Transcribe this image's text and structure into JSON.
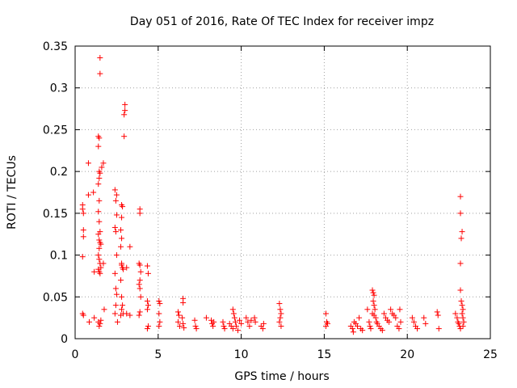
{
  "chart_data": {
    "type": "scatter",
    "title": "Day 051 of 2016, Rate Of TEC Index for receiver impz",
    "xlabel": "GPS time / hours",
    "ylabel": "ROTI / TECUs",
    "xlim": [
      0,
      25
    ],
    "ylim": [
      0,
      0.35
    ],
    "xticks": [
      0,
      5,
      10,
      15,
      20,
      25
    ],
    "yticks": [
      0,
      0.05,
      0.1,
      0.15,
      0.2,
      0.25,
      0.3,
      0.35
    ],
    "xtick_labels": [
      "0",
      "5",
      "10",
      "15",
      "20",
      "25"
    ],
    "ytick_labels": [
      "0",
      "0.05",
      "0.1",
      "0.15",
      "0.2",
      "0.25",
      "0.3",
      "0.35"
    ],
    "grid": true,
    "marker": "plus",
    "color": "#ff0000",
    "series": [
      {
        "name": "ROTI",
        "points": [
          [
            0.45,
            0.16
          ],
          [
            0.45,
            0.155
          ],
          [
            0.5,
            0.15
          ],
          [
            0.5,
            0.13
          ],
          [
            0.5,
            0.122
          ],
          [
            0.45,
            0.098
          ],
          [
            0.45,
            0.03
          ],
          [
            0.5,
            0.028
          ],
          [
            0.8,
            0.21
          ],
          [
            0.8,
            0.172
          ],
          [
            0.85,
            0.02
          ],
          [
            1.1,
            0.175
          ],
          [
            1.15,
            0.08
          ],
          [
            1.15,
            0.025
          ],
          [
            1.4,
            0.242
          ],
          [
            1.45,
            0.24
          ],
          [
            1.4,
            0.23
          ],
          [
            1.45,
            0.2
          ],
          [
            1.5,
            0.198
          ],
          [
            1.45,
            0.192
          ],
          [
            1.4,
            0.185
          ],
          [
            1.45,
            0.165
          ],
          [
            1.4,
            0.152
          ],
          [
            1.45,
            0.14
          ],
          [
            1.5,
            0.128
          ],
          [
            1.4,
            0.125
          ],
          [
            1.45,
            0.118
          ],
          [
            1.5,
            0.115
          ],
          [
            1.55,
            0.113
          ],
          [
            1.45,
            0.108
          ],
          [
            1.4,
            0.1
          ],
          [
            1.45,
            0.095
          ],
          [
            1.5,
            0.09
          ],
          [
            1.4,
            0.083
          ],
          [
            1.45,
            0.08
          ],
          [
            1.5,
            0.078
          ],
          [
            1.55,
            0.085
          ],
          [
            1.4,
            0.02
          ],
          [
            1.45,
            0.015
          ],
          [
            1.5,
            0.018
          ],
          [
            1.55,
            0.022
          ],
          [
            1.5,
            0.336
          ],
          [
            1.5,
            0.317
          ],
          [
            1.7,
            0.21
          ],
          [
            1.6,
            0.205
          ],
          [
            1.7,
            0.09
          ],
          [
            1.75,
            0.035
          ],
          [
            2.4,
            0.178
          ],
          [
            2.5,
            0.172
          ],
          [
            2.45,
            0.165
          ],
          [
            2.5,
            0.148
          ],
          [
            2.4,
            0.133
          ],
          [
            2.45,
            0.128
          ],
          [
            2.5,
            0.1
          ],
          [
            2.4,
            0.078
          ],
          [
            2.45,
            0.06
          ],
          [
            2.5,
            0.053
          ],
          [
            2.45,
            0.04
          ],
          [
            2.4,
            0.03
          ],
          [
            2.55,
            0.02
          ],
          [
            2.8,
            0.16
          ],
          [
            2.85,
            0.158
          ],
          [
            2.8,
            0.145
          ],
          [
            2.75,
            0.13
          ],
          [
            2.8,
            0.12
          ],
          [
            2.75,
            0.11
          ],
          [
            2.8,
            0.09
          ],
          [
            2.85,
            0.085
          ],
          [
            2.9,
            0.083
          ],
          [
            2.8,
            0.088
          ],
          [
            2.75,
            0.07
          ],
          [
            2.8,
            0.05
          ],
          [
            2.85,
            0.04
          ],
          [
            2.8,
            0.035
          ],
          [
            2.9,
            0.03
          ],
          [
            2.75,
            0.028
          ],
          [
            3.0,
            0.28
          ],
          [
            3.0,
            0.273
          ],
          [
            2.95,
            0.268
          ],
          [
            2.95,
            0.242
          ],
          [
            3.1,
            0.085
          ],
          [
            3.1,
            0.03
          ],
          [
            3.3,
            0.11
          ],
          [
            3.3,
            0.028
          ],
          [
            3.9,
            0.155
          ],
          [
            3.9,
            0.15
          ],
          [
            3.85,
            0.09
          ],
          [
            3.9,
            0.088
          ],
          [
            3.95,
            0.08
          ],
          [
            3.9,
            0.07
          ],
          [
            3.85,
            0.065
          ],
          [
            3.9,
            0.06
          ],
          [
            3.95,
            0.05
          ],
          [
            3.9,
            0.032
          ],
          [
            3.85,
            0.028
          ],
          [
            4.35,
            0.087
          ],
          [
            4.4,
            0.078
          ],
          [
            4.35,
            0.045
          ],
          [
            4.4,
            0.04
          ],
          [
            4.35,
            0.035
          ],
          [
            4.4,
            0.015
          ],
          [
            4.35,
            0.012
          ],
          [
            5.05,
            0.045
          ],
          [
            5.1,
            0.042
          ],
          [
            5.05,
            0.03
          ],
          [
            5.1,
            0.02
          ],
          [
            5.05,
            0.015
          ],
          [
            6.2,
            0.032
          ],
          [
            6.25,
            0.028
          ],
          [
            6.2,
            0.02
          ],
          [
            6.3,
            0.015
          ],
          [
            6.5,
            0.048
          ],
          [
            6.5,
            0.043
          ],
          [
            6.45,
            0.025
          ],
          [
            6.5,
            0.018
          ],
          [
            6.55,
            0.013
          ],
          [
            7.2,
            0.022
          ],
          [
            7.25,
            0.015
          ],
          [
            7.3,
            0.012
          ],
          [
            7.9,
            0.025
          ],
          [
            8.2,
            0.022
          ],
          [
            8.25,
            0.018
          ],
          [
            8.3,
            0.015
          ],
          [
            8.35,
            0.02
          ],
          [
            8.9,
            0.02
          ],
          [
            8.95,
            0.015
          ],
          [
            9.0,
            0.012
          ],
          [
            9.3,
            0.018
          ],
          [
            9.4,
            0.015
          ],
          [
            9.5,
            0.035
          ],
          [
            9.55,
            0.03
          ],
          [
            9.6,
            0.025
          ],
          [
            9.65,
            0.02
          ],
          [
            9.5,
            0.012
          ],
          [
            9.7,
            0.015
          ],
          [
            9.8,
            0.01
          ],
          [
            9.9,
            0.022
          ],
          [
            10.0,
            0.018
          ],
          [
            10.3,
            0.025
          ],
          [
            10.4,
            0.02
          ],
          [
            10.5,
            0.015
          ],
          [
            10.6,
            0.022
          ],
          [
            10.8,
            0.025
          ],
          [
            10.85,
            0.02
          ],
          [
            11.2,
            0.015
          ],
          [
            11.3,
            0.012
          ],
          [
            11.35,
            0.018
          ],
          [
            12.3,
            0.042
          ],
          [
            12.35,
            0.035
          ],
          [
            12.4,
            0.03
          ],
          [
            12.35,
            0.025
          ],
          [
            12.3,
            0.02
          ],
          [
            12.4,
            0.015
          ],
          [
            15.1,
            0.03
          ],
          [
            15.15,
            0.02
          ],
          [
            15.2,
            0.018
          ],
          [
            15.1,
            0.015
          ],
          [
            16.6,
            0.015
          ],
          [
            16.7,
            0.012
          ],
          [
            16.75,
            0.008
          ],
          [
            16.8,
            0.02
          ],
          [
            16.9,
            0.018
          ],
          [
            17.0,
            0.015
          ],
          [
            17.1,
            0.025
          ],
          [
            17.2,
            0.012
          ],
          [
            17.3,
            0.01
          ],
          [
            17.6,
            0.035
          ],
          [
            17.7,
            0.02
          ],
          [
            17.75,
            0.015
          ],
          [
            17.8,
            0.012
          ],
          [
            17.9,
            0.058
          ],
          [
            17.95,
            0.055
          ],
          [
            18.0,
            0.052
          ],
          [
            17.95,
            0.045
          ],
          [
            18.0,
            0.04
          ],
          [
            18.05,
            0.035
          ],
          [
            17.9,
            0.03
          ],
          [
            18.0,
            0.028
          ],
          [
            18.1,
            0.025
          ],
          [
            18.15,
            0.02
          ],
          [
            18.2,
            0.018
          ],
          [
            18.3,
            0.015
          ],
          [
            18.4,
            0.012
          ],
          [
            18.5,
            0.01
          ],
          [
            18.6,
            0.03
          ],
          [
            18.7,
            0.025
          ],
          [
            18.8,
            0.022
          ],
          [
            18.9,
            0.02
          ],
          [
            19.0,
            0.035
          ],
          [
            19.1,
            0.03
          ],
          [
            19.2,
            0.028
          ],
          [
            19.3,
            0.025
          ],
          [
            19.4,
            0.015
          ],
          [
            19.5,
            0.012
          ],
          [
            19.55,
            0.035
          ],
          [
            19.6,
            0.02
          ],
          [
            20.3,
            0.025
          ],
          [
            20.4,
            0.02
          ],
          [
            20.5,
            0.015
          ],
          [
            20.6,
            0.012
          ],
          [
            21.0,
            0.025
          ],
          [
            21.1,
            0.018
          ],
          [
            21.8,
            0.032
          ],
          [
            21.85,
            0.028
          ],
          [
            21.9,
            0.012
          ],
          [
            22.9,
            0.03
          ],
          [
            23.0,
            0.025
          ],
          [
            23.05,
            0.02
          ],
          [
            23.1,
            0.018
          ],
          [
            23.15,
            0.015
          ],
          [
            23.2,
            0.012
          ],
          [
            23.2,
            0.17
          ],
          [
            23.2,
            0.15
          ],
          [
            23.3,
            0.128
          ],
          [
            23.25,
            0.12
          ],
          [
            23.2,
            0.09
          ],
          [
            23.2,
            0.058
          ],
          [
            23.25,
            0.045
          ],
          [
            23.3,
            0.04
          ],
          [
            23.35,
            0.035
          ],
          [
            23.3,
            0.03
          ],
          [
            23.35,
            0.025
          ],
          [
            23.4,
            0.02
          ],
          [
            23.35,
            0.015
          ]
        ]
      }
    ]
  }
}
